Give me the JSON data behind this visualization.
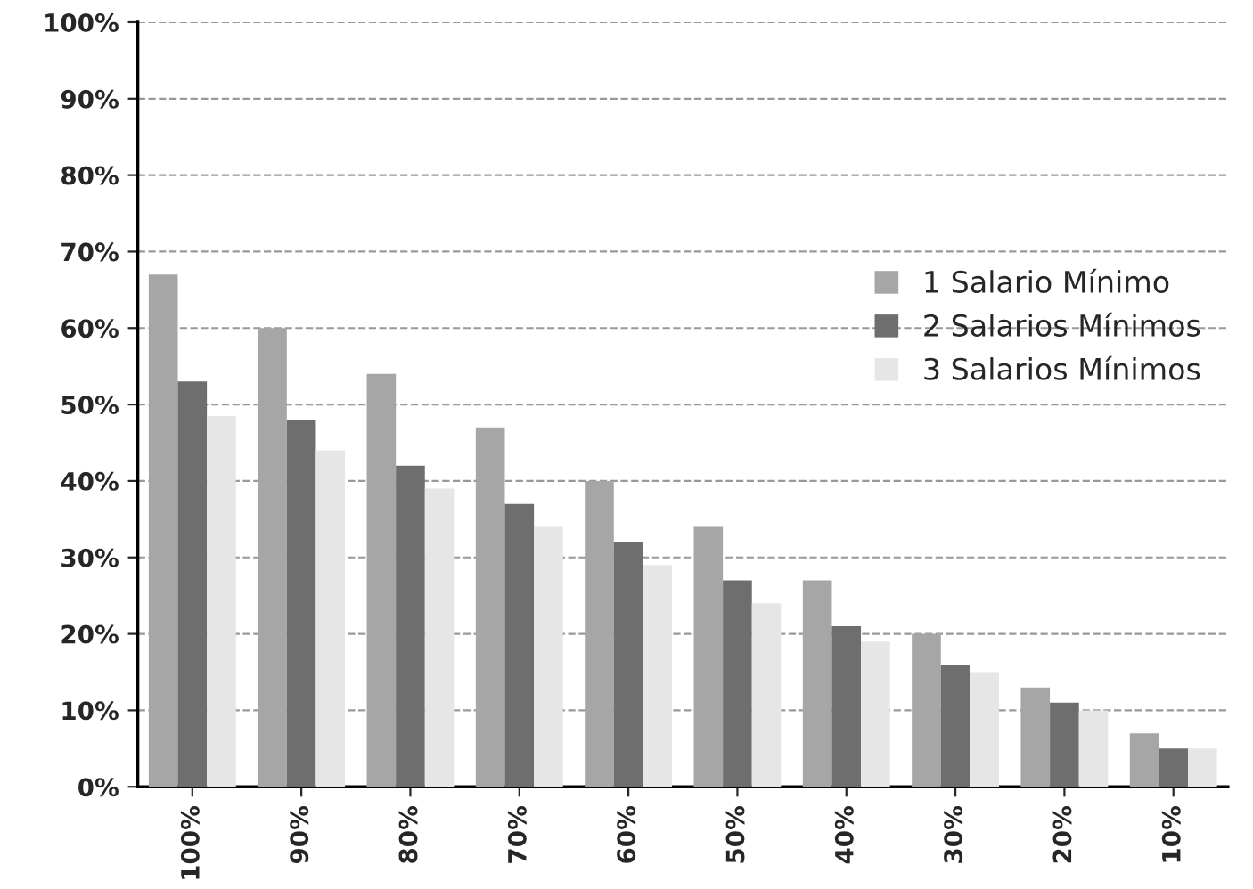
{
  "chart_data": {
    "type": "bar",
    "categories": [
      "100%",
      "90%",
      "80%",
      "70%",
      "60%",
      "50%",
      "40%",
      "30%",
      "20%",
      "10%"
    ],
    "series": [
      {
        "name": "1 Salario Mínimo",
        "color": "#a6a6a6",
        "values": [
          67,
          60,
          54,
          47,
          40,
          34,
          27,
          20,
          13,
          7
        ]
      },
      {
        "name": "2 Salarios Mínimos",
        "color": "#6e6e6e",
        "values": [
          53,
          48,
          42,
          37,
          32,
          27,
          21,
          16,
          11,
          5
        ]
      },
      {
        "name": "3 Salarios Mínimos",
        "color": "#e6e6e6",
        "values": [
          48.5,
          44,
          39,
          34,
          29,
          24,
          19,
          15,
          10,
          5
        ]
      }
    ],
    "ylim": [
      0,
      100
    ],
    "yticks": [
      {
        "value": 0,
        "label": "0%"
      },
      {
        "value": 10,
        "label": "10%"
      },
      {
        "value": 20,
        "label": "20%"
      },
      {
        "value": 30,
        "label": "30%"
      },
      {
        "value": 40,
        "label": "40%"
      },
      {
        "value": 50,
        "label": "50%"
      },
      {
        "value": 60,
        "label": "60%"
      },
      {
        "value": 70,
        "label": "70%"
      },
      {
        "value": 80,
        "label": "80%"
      },
      {
        "value": 90,
        "label": "90%"
      },
      {
        "value": 100,
        "label": "100%"
      }
    ],
    "grid": "y",
    "legend": "right"
  }
}
